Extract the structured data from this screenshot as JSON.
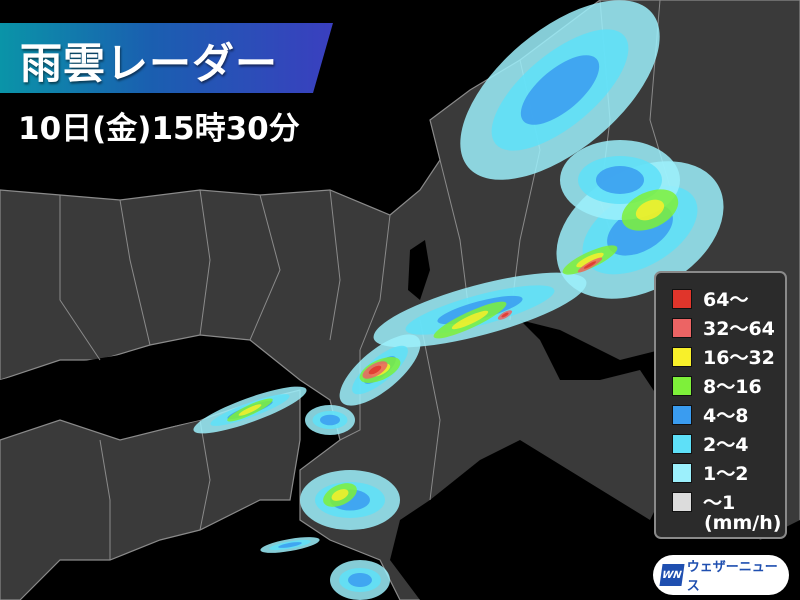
{
  "header": {
    "title": "雨雲レーダー",
    "timestamp": "10日(金)15時30分"
  },
  "legend": {
    "items": [
      {
        "label": "64〜",
        "color": "#e0352b"
      },
      {
        "label": "32〜64",
        "color": "#ec6464"
      },
      {
        "label": "16〜32",
        "color": "#f8f02a"
      },
      {
        "label": "8〜16",
        "color": "#7ef03a"
      },
      {
        "label": "4〜8",
        "color": "#3a9cf0"
      },
      {
        "label": "2〜4",
        "color": "#5ee0f8"
      },
      {
        "label": "1〜2",
        "color": "#9cf0fc"
      },
      {
        "label": "〜1",
        "color": "#dcdcdc"
      }
    ],
    "unit": "(mm/h)"
  },
  "logo": {
    "mark": "WN",
    "text": "ウェザーニュース"
  },
  "map": {
    "land_color": "#3a3a3a",
    "sea_color": "#000000",
    "border_color": "#8a8a8a"
  }
}
